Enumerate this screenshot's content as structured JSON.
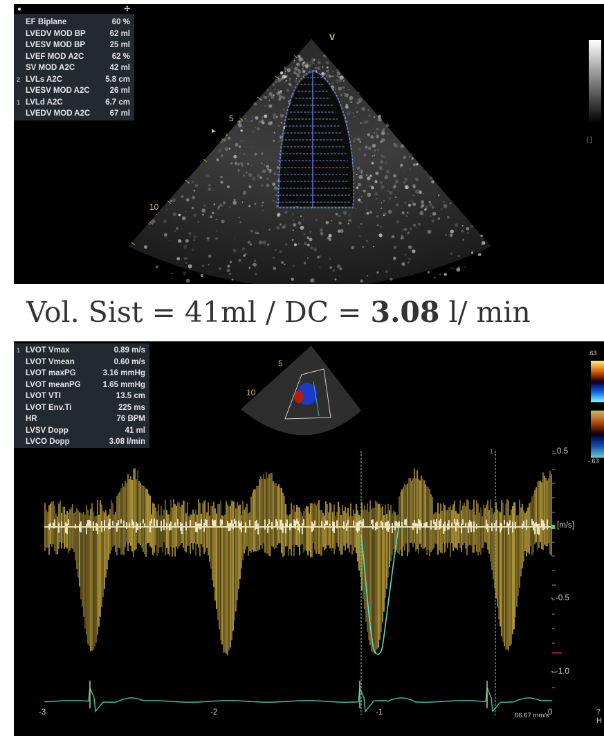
{
  "echo": {
    "measurements": [
      {
        "idx": "",
        "label": "EF Biplane",
        "value": "60 %"
      },
      {
        "idx": "",
        "label": "LVEDV MOD BP",
        "value": "62 ml"
      },
      {
        "idx": "",
        "label": "LVESV MOD BP",
        "value": "25 ml"
      },
      {
        "idx": "",
        "label": "LVEF MOD A2C",
        "value": "62 %"
      },
      {
        "idx": "",
        "label": "SV MOD A2C",
        "value": "42 ml"
      },
      {
        "idx": "2",
        "label": "LVLs A2C",
        "value": "5.8 cm"
      },
      {
        "idx": "",
        "label": "LVESV MOD A2C",
        "value": "26 ml"
      },
      {
        "idx": "1",
        "label": "LVLd A2C",
        "value": "6.7 cm"
      },
      {
        "idx": "",
        "label": "LVEDV MOD A2C",
        "value": "67 ml"
      }
    ],
    "depth_labels": {
      "d5": "5",
      "d10": "10"
    },
    "marker": "V"
  },
  "caption": {
    "prefix": "Vol. Sist = 41ml  /  DC = ",
    "value": "3.08",
    "unit": " l/ min"
  },
  "doppler": {
    "measurements": [
      {
        "idx": "1",
        "label": "LVOT Vmax",
        "value": "0.89 m/s"
      },
      {
        "idx": "",
        "label": "LVOT Vmean",
        "value": "0.60 m/s"
      },
      {
        "idx": "",
        "label": "LVOT maxPG",
        "value": "3.16 mmHg"
      },
      {
        "idx": "",
        "label": "LVOT meanPG",
        "value": "1.65 mmHg"
      },
      {
        "idx": "",
        "label": "LVOT VTI",
        "value": "13.5 cm"
      },
      {
        "idx": "",
        "label": "LVOT Env.Ti",
        "value": "225 ms"
      },
      {
        "idx": "",
        "label": "HR",
        "value": "76 BPM"
      },
      {
        "idx": "",
        "label": "LVSV Dopp",
        "value": "41 ml"
      },
      {
        "idx": "",
        "label": "LVCO Dopp",
        "value": "3.08 l/min"
      }
    ],
    "y_ticks": [
      "- 0.5",
      "[m/s]",
      "- -0.5",
      "- -1.0"
    ],
    "x_ticks": [
      "-3",
      "-2",
      "-1",
      "0"
    ],
    "sweep_speed": "66.67 mm/s",
    "color_scale": {
      "top": ".63",
      "bottom": "-.63"
    },
    "depth_labels": {
      "d5": "5",
      "d10": "10"
    },
    "cursor_marker": "1",
    "corner_text": "7\nH",
    "colors": {
      "spectrum": "#e8c64a",
      "trace": "#4fd4b4",
      "ecg": "#3ec8b8",
      "grid": "#3fd07a"
    }
  }
}
